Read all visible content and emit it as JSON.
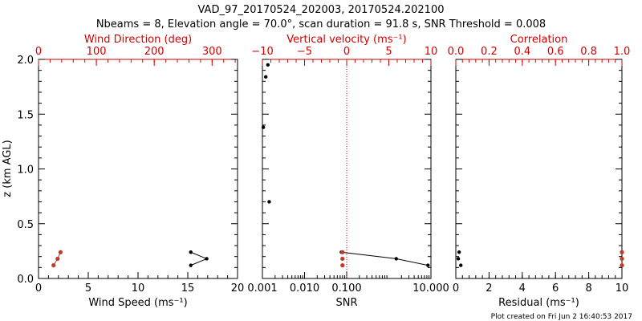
{
  "title": "VAD_97_20170524_202003, 20170524.202100",
  "subtitle": "Nbeams = 8, Elevation angle = 70.0°, scan duration = 91.8 s, SNR Threshold = 0.008",
  "footer": "Plot created on Fri Jun  2 16:40:53 2017",
  "colors": {
    "axis": "#000000",
    "red": "#d00000",
    "marker_red": "#c0392b"
  },
  "ylabel": "z (km AGL)",
  "chart_data": [
    {
      "type": "line",
      "xlabel": "Wind Speed (ms⁻¹)",
      "xlim": [
        0,
        20
      ],
      "xticks": [
        0,
        5,
        10,
        15,
        20
      ],
      "ylim": [
        0,
        2.0
      ],
      "yticks": [
        0.0,
        0.5,
        1.0,
        1.5,
        2.0
      ],
      "top_axis": {
        "label": "Wind Direction (deg)",
        "lim": [
          0,
          344
        ],
        "ticks": [
          0,
          100,
          200,
          300
        ]
      },
      "series": [
        {
          "axis": "bottom",
          "color": "#000000",
          "points": [
            [
              15.3,
              0.24
            ],
            [
              16.9,
              0.18
            ],
            [
              15.3,
              0.12
            ]
          ]
        },
        {
          "axis": "top",
          "color": "#c0392b",
          "points": [
            [
              38,
              0.24
            ],
            [
              33,
              0.18
            ],
            [
              26,
              0.12
            ]
          ]
        }
      ]
    },
    {
      "type": "line",
      "xlabel": "SNR",
      "xscale": "log",
      "xlim": [
        0.001,
        10
      ],
      "xticks": [
        0.001,
        0.01,
        0.1,
        10
      ],
      "xtick_labels": [
        "0.001",
        "0.010",
        "0.100",
        "10.000"
      ],
      "ylim": [
        0,
        2.0
      ],
      "top_axis": {
        "label": "Vertical velocity (ms⁻¹)",
        "lim": [
          -10,
          10
        ],
        "ticks": [
          -10,
          -5,
          0,
          5,
          10
        ],
        "zero_line": true
      },
      "series": [
        {
          "axis": "bottom",
          "color": "#000000",
          "connected": true,
          "points": [
            [
              0.075,
              0.24
            ],
            [
              1.5,
              0.18
            ],
            [
              8.5,
              0.12
            ]
          ]
        },
        {
          "axis": "bottom",
          "color": "#000000",
          "connected": false,
          "points": [
            [
              0.0012,
              1.84
            ],
            [
              0.00135,
              1.95
            ],
            [
              0.00105,
              1.38
            ],
            [
              0.00145,
              0.7
            ]
          ]
        },
        {
          "axis": "top",
          "color": "#c0392b",
          "connected": false,
          "points": [
            [
              -0.5,
              0.24
            ],
            [
              -0.5,
              0.18
            ],
            [
              -0.5,
              0.12
            ]
          ]
        }
      ]
    },
    {
      "type": "scatter",
      "xlabel": "Residual (ms⁻¹)",
      "xlim": [
        0,
        10
      ],
      "xticks": [
        0,
        2,
        4,
        6,
        8,
        10
      ],
      "ylim": [
        0,
        2.0
      ],
      "top_axis": {
        "label": "Correlation",
        "lim": [
          0,
          1.0
        ],
        "ticks": [
          0.0,
          0.2,
          0.4,
          0.6,
          0.8,
          1.0
        ]
      },
      "series": [
        {
          "axis": "bottom",
          "color": "#000000",
          "points": [
            [
              0.2,
              0.24
            ],
            [
              0.15,
              0.18
            ],
            [
              0.3,
              0.12
            ]
          ]
        },
        {
          "axis": "top",
          "color": "#c0392b",
          "points": [
            [
              1.0,
              0.24
            ],
            [
              1.0,
              0.18
            ],
            [
              1.0,
              0.12
            ]
          ]
        }
      ]
    }
  ]
}
